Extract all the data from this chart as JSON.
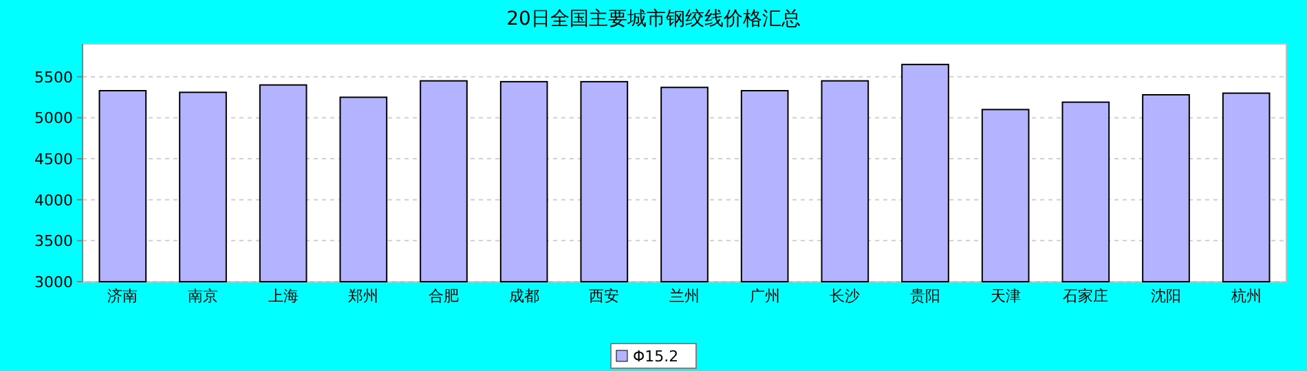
{
  "chart_data": {
    "type": "bar",
    "title": "20日全国主要城市钢绞线价格汇总",
    "categories": [
      "济南",
      "南京",
      "上海",
      "郑州",
      "合肥",
      "成都",
      "西安",
      "兰州",
      "广州",
      "长沙",
      "贵阳",
      "天津",
      "石家庄",
      "沈阳",
      "杭州"
    ],
    "series": [
      {
        "name": "Φ15.2",
        "color": "#b3b3ff",
        "values": [
          5330,
          5310,
          5400,
          5250,
          5450,
          5440,
          5440,
          5370,
          5330,
          5450,
          5650,
          5100,
          5190,
          5280,
          5300
        ]
      }
    ],
    "ylim": [
      3000,
      5900
    ],
    "yticks": [
      3000,
      3500,
      4000,
      4500,
      5000,
      5500
    ],
    "grid": "y",
    "legend": "bottom"
  }
}
